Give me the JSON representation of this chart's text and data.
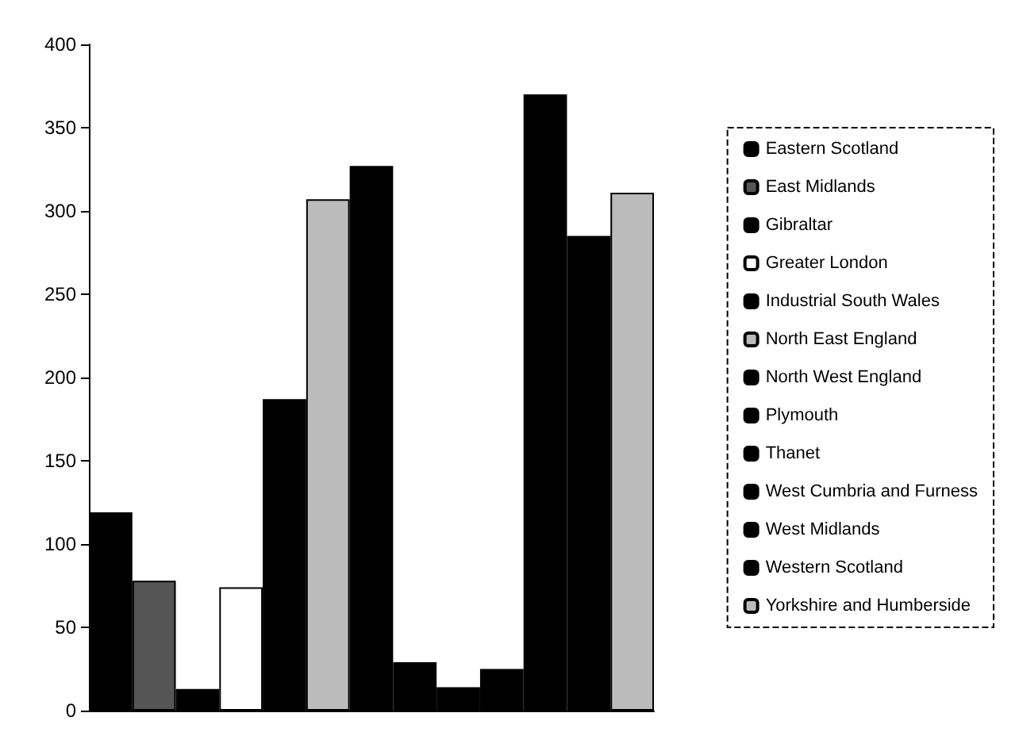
{
  "chart_data": {
    "type": "bar",
    "categories": [
      null
    ],
    "series": [
      {
        "name": "Eastern Scotland",
        "color": "#000000",
        "values": [
          119
        ]
      },
      {
        "name": "East Midlands",
        "color": "#555555",
        "values": [
          78
        ]
      },
      {
        "name": "Gibraltar",
        "color": "#000000",
        "values": [
          13
        ]
      },
      {
        "name": "Greater London",
        "color": "#ffffff",
        "values": [
          74
        ]
      },
      {
        "name": "Industrial South Wales",
        "color": "#000000",
        "values": [
          187
        ]
      },
      {
        "name": "North East England",
        "color": "#bbbbbb",
        "values": [
          307
        ]
      },
      {
        "name": "North West England",
        "color": "#000000",
        "values": [
          327
        ]
      },
      {
        "name": "Plymouth",
        "color": "#000000",
        "values": [
          29
        ]
      },
      {
        "name": "Thanet",
        "color": "#000000",
        "values": [
          14
        ]
      },
      {
        "name": "West Cumbria and Furness",
        "color": "#000000",
        "values": [
          25
        ]
      },
      {
        "name": "West Midlands",
        "color": "#000000",
        "values": [
          370
        ]
      },
      {
        "name": "Western Scotland",
        "color": "#000000",
        "values": [
          285
        ]
      },
      {
        "name": "Yorkshire and Humberside",
        "color": "#bbbbbb",
        "values": [
          311
        ]
      }
    ],
    "ylim": [
      0,
      400
    ],
    "yticks": [
      0,
      50,
      100,
      150,
      200,
      250,
      300,
      350,
      400
    ],
    "grid": false,
    "legend": "right"
  }
}
